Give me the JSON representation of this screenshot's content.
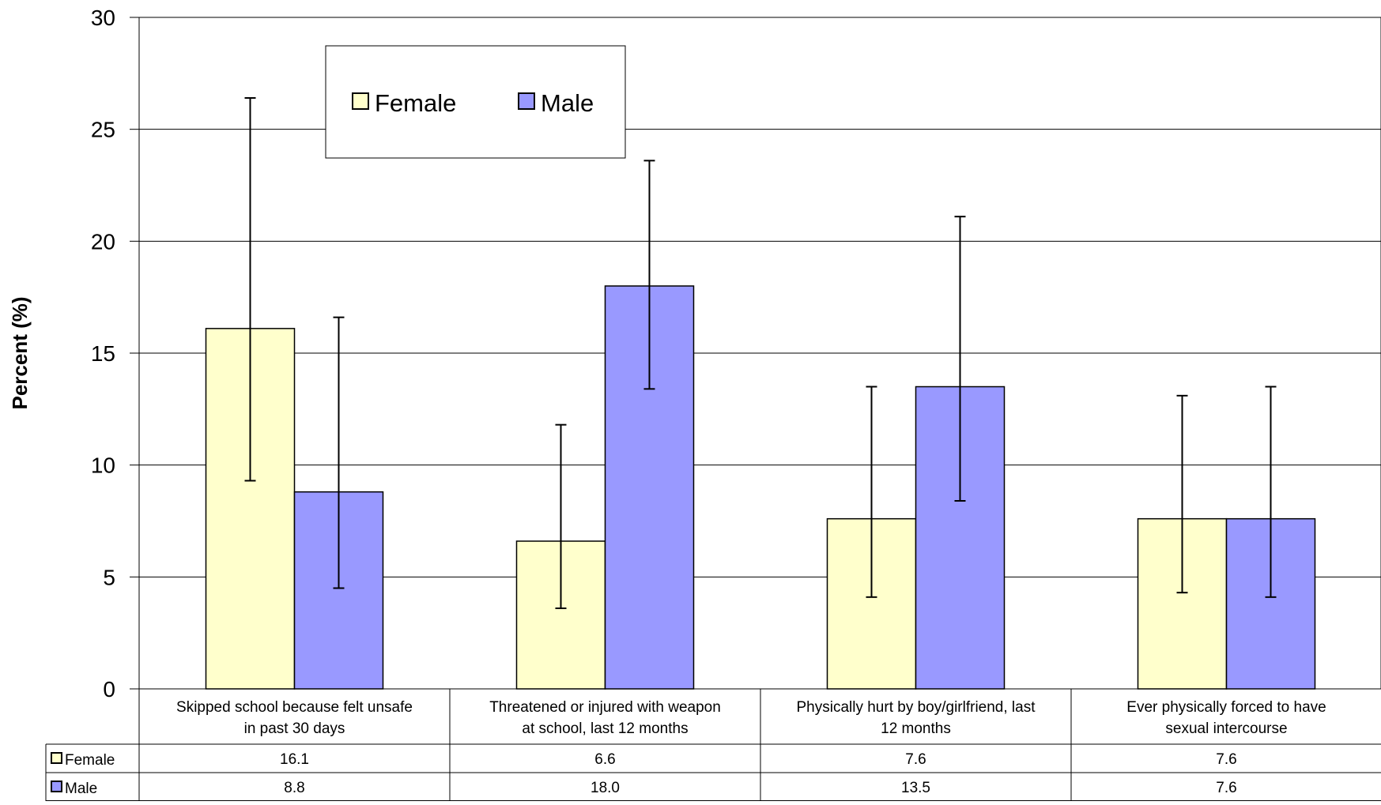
{
  "chart_data": {
    "type": "bar",
    "ylabel": "Percent (%)",
    "ylim": [
      0,
      30
    ],
    "yticks": [
      0,
      5,
      10,
      15,
      20,
      25,
      30
    ],
    "grid": true,
    "legend_position": "top-left",
    "categories": [
      [
        "Skipped school because felt unsafe",
        "in past 30 days"
      ],
      [
        "Threatened or injured with weapon",
        "at school, last 12 months"
      ],
      [
        "Physically hurt by boy/girlfriend, last",
        "12 months"
      ],
      [
        "Ever physically forced to have",
        "sexual intercourse"
      ]
    ],
    "series": [
      {
        "name": "Female",
        "color": "#FFFFCC",
        "values": [
          16.1,
          6.6,
          7.6,
          7.6
        ],
        "labels": [
          "16.1",
          "6.6",
          "7.6",
          "7.6"
        ],
        "ci_low": [
          9.3,
          3.6,
          4.1,
          4.3
        ],
        "ci_high": [
          26.4,
          11.8,
          13.5,
          13.1
        ]
      },
      {
        "name": "Male",
        "color": "#9999FF",
        "values": [
          8.8,
          18.0,
          13.5,
          7.6
        ],
        "labels": [
          "8.8",
          "18.0",
          "13.5",
          "7.6"
        ],
        "ci_low": [
          4.5,
          13.4,
          8.4,
          4.1
        ],
        "ci_high": [
          16.6,
          23.6,
          21.1,
          13.5
        ]
      }
    ],
    "data_table": true
  }
}
